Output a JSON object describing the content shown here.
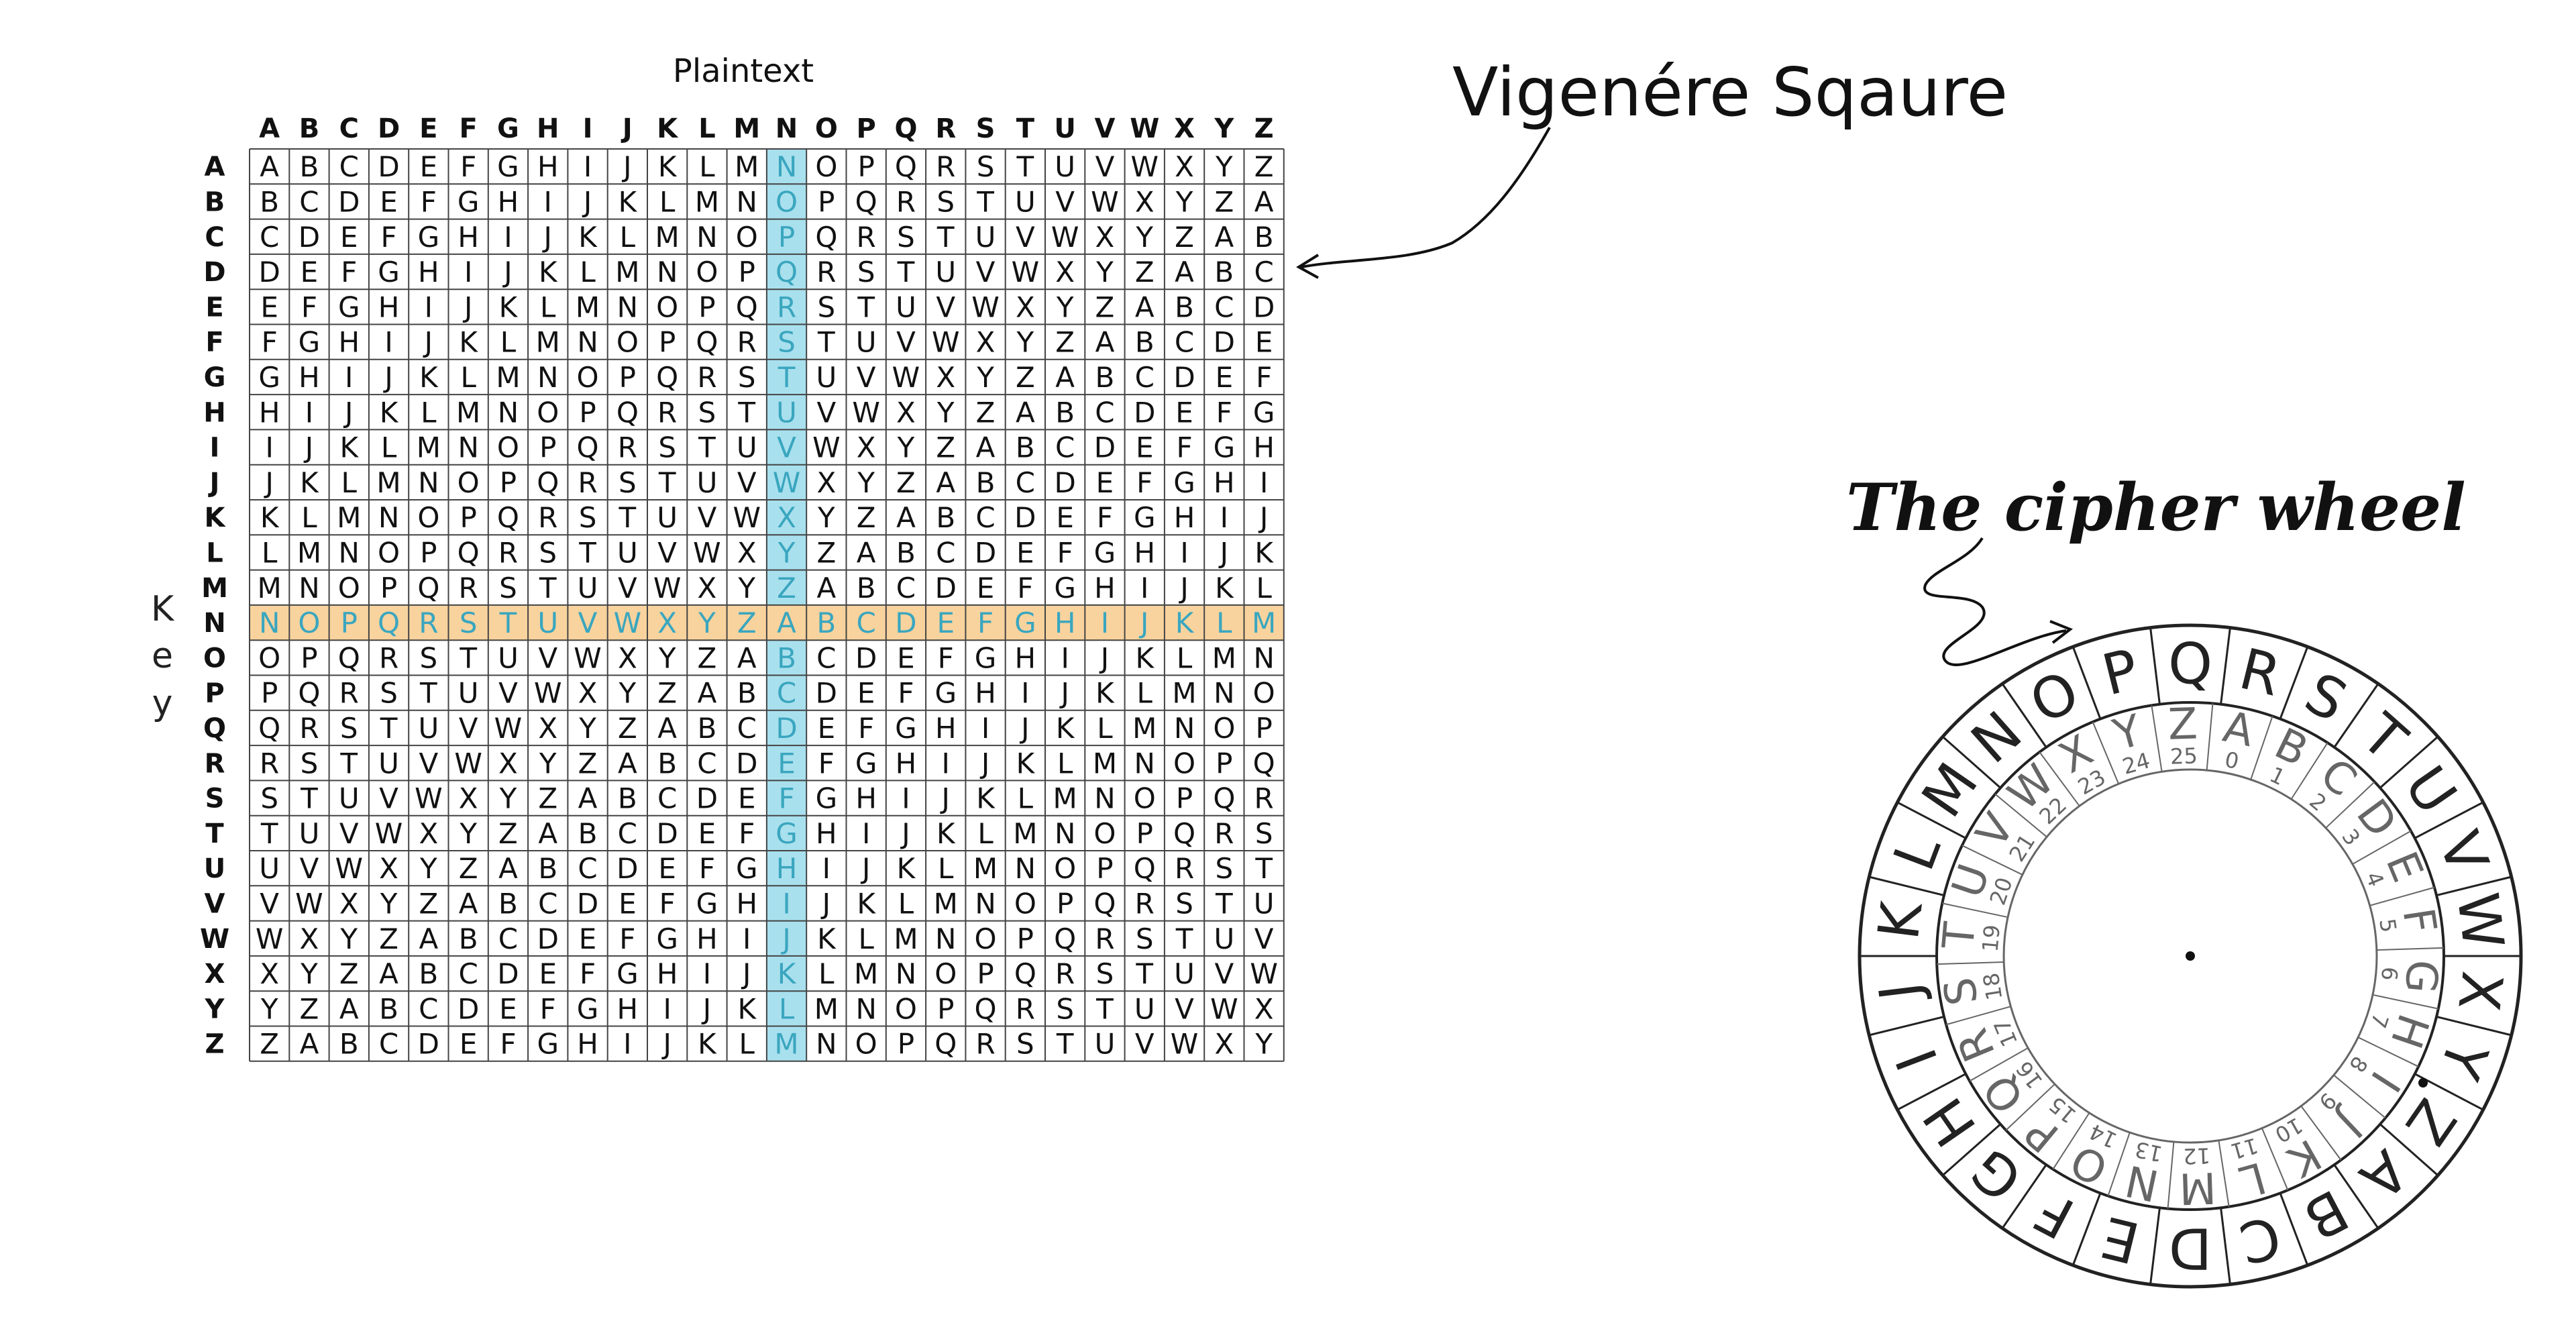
{
  "square": {
    "title": "Plaintext",
    "key_label": [
      "K",
      "e",
      "y"
    ],
    "letters": [
      "A",
      "B",
      "C",
      "D",
      "E",
      "F",
      "G",
      "H",
      "I",
      "J",
      "K",
      "L",
      "M",
      "N",
      "O",
      "P",
      "Q",
      "R",
      "S",
      "T",
      "U",
      "V",
      "W",
      "X",
      "Y",
      "Z"
    ],
    "highlight_column": "N",
    "highlight_row": "N",
    "colors": {
      "column_highlight": "#a9e0ee",
      "row_highlight": "#f8d39e",
      "grid": "#444444",
      "highlight_text": "#3aa6bf"
    }
  },
  "annotations": {
    "square_label": "Vigenére Sqaure",
    "wheel_label": "The cipher wheel"
  },
  "wheel": {
    "outer_letters": [
      "A",
      "B",
      "C",
      "D",
      "E",
      "F",
      "G",
      "H",
      "I",
      "J",
      "K",
      "L",
      "M",
      "N",
      "O",
      "P",
      "Q",
      "R",
      "S",
      "T",
      "U",
      "V",
      "W",
      "X",
      "Y",
      "Z"
    ],
    "inner_letters": [
      "A",
      "B",
      "C",
      "D",
      "E",
      "F",
      "G",
      "H",
      "I",
      "J",
      "K",
      "L",
      "M",
      "N",
      "O",
      "P",
      "Q",
      "R",
      "S",
      "T",
      "U",
      "V",
      "W",
      "X",
      "Y",
      "Z"
    ],
    "inner_numbers": [
      "0",
      "1",
      "2",
      "3",
      "4",
      "5",
      "6",
      "7",
      "8",
      "9",
      "10",
      "11",
      "12",
      "13",
      "14",
      "15",
      "16",
      "17",
      "18",
      "19",
      "20",
      "21",
      "22",
      "23",
      "24",
      "25"
    ]
  }
}
